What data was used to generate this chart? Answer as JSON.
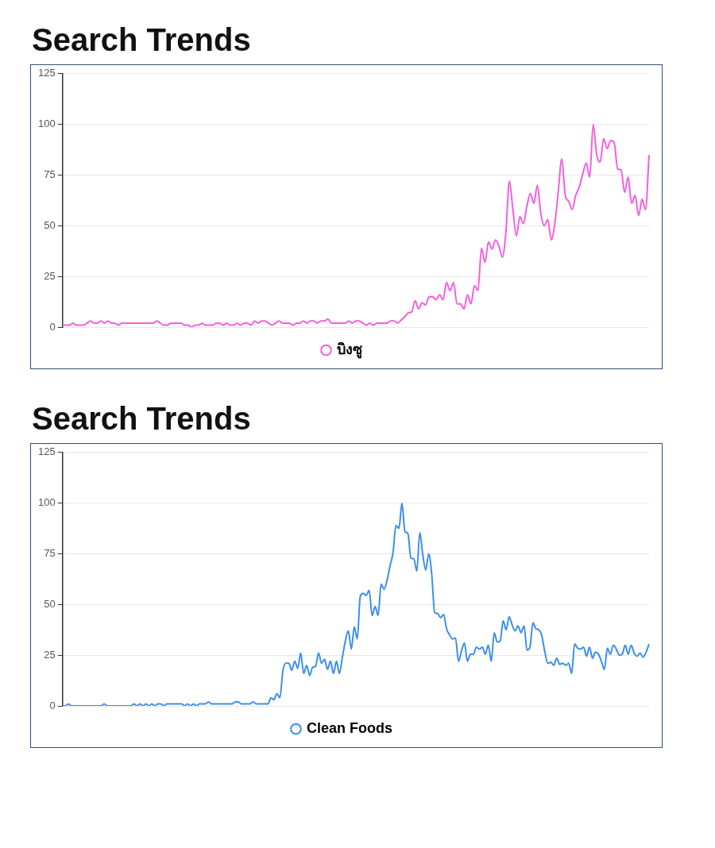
{
  "chart_data": [
    {
      "type": "line",
      "title": "Search Trends",
      "categories": [
        null,
        null,
        null,
        null,
        null,
        null,
        null,
        null,
        null,
        null,
        null,
        null,
        null,
        null,
        null,
        null,
        null,
        null,
        null,
        null,
        null,
        null,
        null,
        null,
        null,
        null,
        null,
        null,
        null,
        null,
        null,
        null,
        null,
        null,
        null,
        null,
        null,
        null,
        null,
        null,
        null,
        null,
        null,
        null,
        null,
        null,
        null,
        null,
        null,
        null,
        null,
        null,
        null,
        null,
        null,
        null,
        null,
        null,
        null,
        null,
        null,
        null,
        null,
        null,
        null,
        null,
        null,
        null,
        null,
        null,
        null,
        null,
        null,
        null,
        null,
        null,
        null,
        null,
        null,
        null,
        null,
        null,
        null,
        null,
        null,
        null,
        null,
        null,
        null,
        null,
        null,
        null,
        null,
        null,
        null,
        null,
        null,
        null,
        null,
        null,
        null,
        null,
        null,
        null,
        null,
        null,
        null,
        null,
        null,
        null,
        null,
        null,
        null,
        null,
        null,
        null,
        null,
        null,
        null,
        null,
        null,
        null,
        null,
        null,
        null,
        null,
        null,
        null,
        null,
        null,
        null,
        null,
        null,
        null,
        null,
        null,
        null,
        null,
        null,
        null,
        null,
        null,
        null,
        null,
        null,
        null,
        null,
        null,
        null,
        null,
        null,
        null,
        null,
        null,
        null,
        null,
        null,
        null,
        null,
        null,
        null,
        null,
        null,
        null,
        null,
        null,
        null,
        null,
        null
      ],
      "ylim": [
        0,
        125
      ],
      "yticks": [
        0,
        25,
        50,
        75,
        100,
        125
      ],
      "grid": "y",
      "legend": "bottom",
      "marker": "none",
      "line_style": "solid",
      "tick_labels": "y",
      "series": [
        {
          "name": "บิงซู",
          "color": "#f55ee0",
          "values": [
            1,
            1,
            1,
            2,
            1,
            1,
            1,
            2,
            3,
            2,
            2,
            3,
            2,
            3,
            2,
            2,
            1,
            2,
            2,
            2,
            2,
            2,
            2,
            2,
            2,
            2,
            2,
            3,
            2,
            1,
            1,
            2,
            2,
            2,
            2,
            1,
            1,
            0,
            1,
            1,
            2,
            1,
            1,
            1,
            2,
            2,
            1,
            2,
            1,
            1,
            2,
            1,
            2,
            2,
            1,
            3,
            2,
            3,
            3,
            2,
            1,
            2,
            3,
            2,
            2,
            2,
            1,
            2,
            2,
            3,
            2,
            3,
            3,
            2,
            3,
            3,
            4,
            2,
            2,
            2,
            2,
            2,
            3,
            2,
            3,
            3,
            2,
            1,
            2,
            1,
            2,
            2,
            2,
            2,
            3,
            3,
            2,
            3.5,
            5,
            7,
            7.5,
            13,
            9,
            12,
            11,
            15,
            15,
            13.5,
            16,
            13.5,
            22,
            18,
            22,
            11.5,
            11.5,
            9,
            16,
            11.5,
            20.5,
            18,
            39,
            32,
            42,
            38.5,
            43,
            40,
            34.5,
            47,
            72,
            58,
            45,
            54.5,
            51,
            59.5,
            66,
            61,
            70,
            56,
            50,
            53,
            43,
            51,
            67,
            83,
            65,
            62,
            58,
            65,
            69,
            75.5,
            81,
            74,
            100,
            85,
            81.5,
            93,
            88,
            92,
            91,
            78,
            77.5,
            66.5,
            74,
            61,
            65,
            55,
            63,
            58,
            85
          ]
        }
      ]
    },
    {
      "type": "line",
      "title": "Search Trends",
      "categories": [
        null,
        null,
        null,
        null,
        null,
        null,
        null,
        null,
        null,
        null,
        null,
        null,
        null,
        null,
        null,
        null,
        null,
        null,
        null,
        null,
        null,
        null,
        null,
        null,
        null,
        null,
        null,
        null,
        null,
        null,
        null,
        null,
        null,
        null,
        null,
        null,
        null,
        null,
        null,
        null,
        null,
        null,
        null,
        null,
        null,
        null,
        null,
        null,
        null,
        null,
        null,
        null,
        null,
        null,
        null,
        null,
        null,
        null,
        null,
        null,
        null,
        null,
        null,
        null,
        null,
        null,
        null,
        null,
        null,
        null,
        null,
        null,
        null,
        null,
        null,
        null,
        null,
        null,
        null,
        null,
        null,
        null,
        null,
        null,
        null,
        null,
        null,
        null,
        null,
        null,
        null,
        null,
        null,
        null,
        null,
        null,
        null,
        null,
        null,
        null,
        null,
        null,
        null,
        null,
        null,
        null,
        null,
        null,
        null,
        null,
        null,
        null,
        null,
        null,
        null,
        null,
        null,
        null,
        null,
        null,
        null,
        null,
        null,
        null,
        null,
        null,
        null,
        null,
        null,
        null,
        null,
        null,
        null,
        null,
        null,
        null,
        null,
        null,
        null,
        null,
        null,
        null,
        null,
        null,
        null,
        null,
        null,
        null,
        null,
        null,
        null,
        null,
        null,
        null,
        null,
        null,
        null,
        null,
        null,
        null,
        null,
        null,
        null,
        null,
        null,
        null,
        null,
        null,
        null,
        null,
        null,
        null,
        null,
        null,
        null,
        null,
        null,
        null,
        null,
        null,
        null,
        null,
        null,
        null,
        null,
        null,
        null,
        null,
        null,
        null,
        null,
        null,
        null,
        null,
        null,
        null,
        null,
        null
      ],
      "ylim": [
        0,
        125
      ],
      "yticks": [
        0,
        25,
        50,
        75,
        100,
        125
      ],
      "grid": "y",
      "legend": "bottom",
      "marker": "none",
      "line_style": "solid",
      "tick_labels": "y",
      "series": [
        {
          "name": "Clean Foods",
          "color": "#3b8eef",
          "values": [
            0,
            0,
            1,
            0,
            0,
            0,
            0,
            0,
            0,
            0,
            0,
            0,
            0,
            0,
            1,
            0,
            0,
            0,
            0,
            0,
            0,
            0,
            0,
            0,
            1,
            0,
            1,
            0,
            1,
            0,
            1,
            0,
            1,
            1,
            0,
            1,
            1,
            1,
            1,
            1,
            1,
            0,
            1,
            0,
            1,
            0,
            1,
            1,
            1,
            2,
            1,
            1,
            1,
            1,
            1,
            1,
            1,
            1,
            2,
            2,
            1,
            1,
            1,
            1,
            2,
            1,
            1,
            1,
            1,
            1,
            4,
            3,
            6,
            4,
            17,
            21,
            21,
            17.5,
            22,
            18.5,
            26,
            16,
            20,
            15,
            19,
            19.5,
            26,
            21,
            23,
            18,
            22,
            16,
            22,
            16,
            24,
            32,
            37,
            28,
            39,
            33,
            54,
            55.5,
            54.5,
            57,
            44.5,
            49,
            44.5,
            60,
            57.5,
            62,
            69,
            75.5,
            89,
            87.5,
            100,
            86,
            85,
            73,
            72.5,
            66.5,
            85.5,
            74.5,
            67,
            75,
            65,
            46,
            45.5,
            43.5,
            45,
            38,
            35,
            33,
            33.5,
            22,
            27,
            31,
            22,
            25.5,
            25.5,
            29,
            28,
            29,
            25.5,
            30,
            22,
            36,
            31.5,
            32,
            42,
            37.5,
            44,
            40,
            37,
            39.5,
            36,
            39.5,
            27.5,
            29,
            41,
            38,
            37.5,
            34.5,
            26.5,
            21,
            21.5,
            20,
            23.5,
            20.5,
            21,
            20,
            21,
            16,
            30.5,
            28.5,
            28,
            29,
            24.5,
            29,
            23.5,
            26.5,
            25.5,
            22,
            18,
            28.5,
            25.5,
            30,
            28,
            25,
            25.5,
            30,
            25.5,
            30,
            26,
            24.5,
            26,
            24,
            26.5,
            30.5
          ]
        }
      ]
    }
  ]
}
